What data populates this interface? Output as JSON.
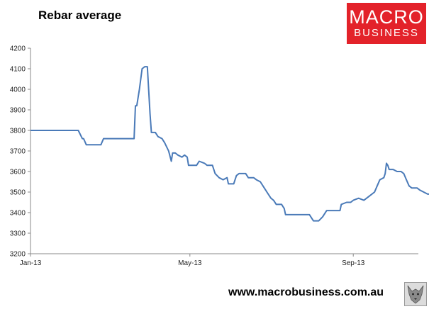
{
  "header": {
    "title": "Rebar average"
  },
  "logo": {
    "line1": "MACRO",
    "line2": "BUSINESS",
    "color": "#e3222a"
  },
  "footer": {
    "url": "www.macrobusiness.com.au",
    "badge_icon": "wolf-icon"
  },
  "chart_data": {
    "type": "line",
    "title": "Rebar average",
    "xlabel": "",
    "ylabel": "",
    "ylim": [
      3200,
      4200
    ],
    "yticks": [
      3200,
      3300,
      3400,
      3500,
      3600,
      3700,
      3800,
      3900,
      4000,
      4100,
      4200
    ],
    "xticks": [
      {
        "date": "2013-01-01",
        "label": "Jan-13"
      },
      {
        "date": "2013-05-01",
        "label": "May-13"
      },
      {
        "date": "2013-09-01",
        "label": "Sep-13"
      }
    ],
    "xlim": [
      "2013-01-01",
      "2013-10-20"
    ],
    "grid": false,
    "line_color": "#4a7ab8",
    "series": [
      {
        "points": [
          [
            "2013-01-01",
            3800
          ],
          [
            "2013-02-06",
            3800
          ],
          [
            "2013-02-09",
            3760
          ],
          [
            "2013-02-10",
            3760
          ],
          [
            "2013-02-12",
            3730
          ],
          [
            "2013-02-23",
            3730
          ],
          [
            "2013-02-25",
            3760
          ],
          [
            "2013-03-20",
            3760
          ],
          [
            "2013-03-21",
            3920
          ],
          [
            "2013-03-22",
            3920
          ],
          [
            "2013-03-24",
            4000
          ],
          [
            "2013-03-26",
            4100
          ],
          [
            "2013-03-28",
            4110
          ],
          [
            "2013-03-30",
            4110
          ],
          [
            "2013-04-01",
            3880
          ],
          [
            "2013-04-02",
            3790
          ],
          [
            "2013-04-05",
            3790
          ],
          [
            "2013-04-07",
            3770
          ],
          [
            "2013-04-10",
            3760
          ],
          [
            "2013-04-12",
            3740
          ],
          [
            "2013-04-15",
            3700
          ],
          [
            "2013-04-17",
            3650
          ],
          [
            "2013-04-18",
            3690
          ],
          [
            "2013-04-20",
            3690
          ],
          [
            "2013-04-22",
            3680
          ],
          [
            "2013-04-25",
            3670
          ],
          [
            "2013-04-27",
            3680
          ],
          [
            "2013-04-29",
            3670
          ],
          [
            "2013-04-30",
            3630
          ],
          [
            "2013-05-06",
            3630
          ],
          [
            "2013-05-08",
            3650
          ],
          [
            "2013-05-12",
            3640
          ],
          [
            "2013-05-14",
            3630
          ],
          [
            "2013-05-18",
            3630
          ],
          [
            "2013-05-20",
            3590
          ],
          [
            "2013-05-23",
            3570
          ],
          [
            "2013-05-26",
            3560
          ],
          [
            "2013-05-29",
            3570
          ],
          [
            "2013-05-30",
            3540
          ],
          [
            "2013-06-03",
            3540
          ],
          [
            "2013-06-05",
            3580
          ],
          [
            "2013-06-07",
            3590
          ],
          [
            "2013-06-12",
            3590
          ],
          [
            "2013-06-14",
            3570
          ],
          [
            "2013-06-18",
            3570
          ],
          [
            "2013-06-20",
            3560
          ],
          [
            "2013-06-23",
            3550
          ],
          [
            "2013-06-26",
            3520
          ],
          [
            "2013-06-28",
            3500
          ],
          [
            "2013-07-01",
            3470
          ],
          [
            "2013-07-03",
            3460
          ],
          [
            "2013-07-05",
            3440
          ],
          [
            "2013-07-09",
            3440
          ],
          [
            "2013-07-11",
            3420
          ],
          [
            "2013-07-12",
            3390
          ],
          [
            "2013-07-30",
            3390
          ],
          [
            "2013-08-01",
            3370
          ],
          [
            "2013-08-02",
            3360
          ],
          [
            "2013-08-06",
            3360
          ],
          [
            "2013-08-09",
            3380
          ],
          [
            "2013-08-12",
            3410
          ],
          [
            "2013-08-22",
            3410
          ],
          [
            "2013-08-23",
            3440
          ],
          [
            "2013-08-27",
            3450
          ],
          [
            "2013-08-30",
            3450
          ],
          [
            "2013-09-01",
            3460
          ],
          [
            "2013-09-05",
            3470
          ],
          [
            "2013-09-09",
            3460
          ],
          [
            "2013-09-13",
            3480
          ],
          [
            "2013-09-17",
            3500
          ],
          [
            "2013-09-19",
            3530
          ],
          [
            "2013-09-21",
            3560
          ],
          [
            "2013-09-24",
            3570
          ],
          [
            "2013-09-25",
            3590
          ],
          [
            "2013-09-26",
            3640
          ],
          [
            "2013-09-27",
            3630
          ],
          [
            "2013-09-28",
            3610
          ],
          [
            "2013-10-01",
            3610
          ],
          [
            "2013-10-04",
            3600
          ],
          [
            "2013-10-07",
            3600
          ],
          [
            "2013-10-09",
            3590
          ],
          [
            "2013-10-11",
            3560
          ],
          [
            "2013-10-13",
            3530
          ],
          [
            "2013-10-15",
            3520
          ],
          [
            "2013-10-19",
            3520
          ],
          [
            "2013-10-21",
            3510
          ],
          [
            "2013-10-24",
            3500
          ],
          [
            "2013-10-27",
            3490
          ],
          [
            "2013-11-03",
            3490
          ],
          [
            "2013-11-05",
            3490
          ]
        ]
      }
    ]
  }
}
